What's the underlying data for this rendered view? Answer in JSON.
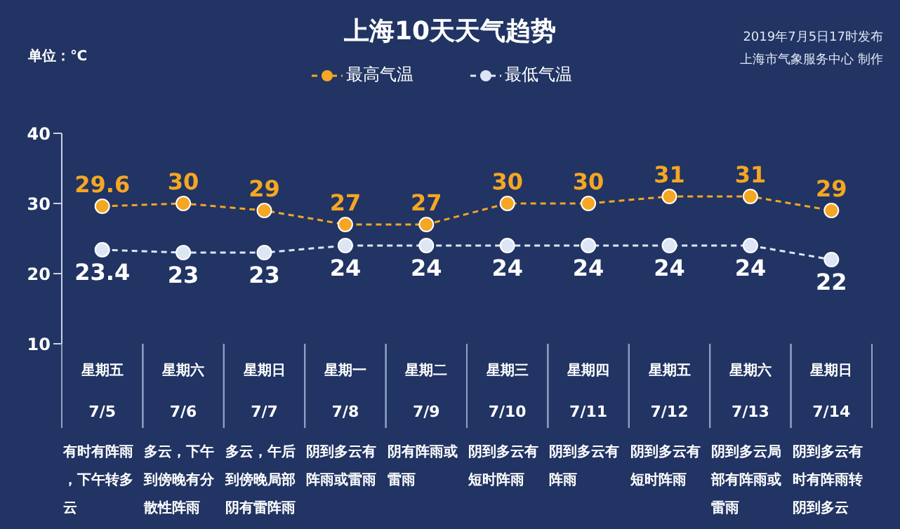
{
  "chart_data": {
    "type": "line",
    "title": "上海10天天气趋势",
    "ylabel": "单位：℃",
    "annotations": [
      "2019年7月5日17时发布",
      "上海市气象服务中心 制作"
    ],
    "categories": [
      "星期五\n7/5\n有时有阵雨，下午转多云",
      "星期六\n7/6\n多云，下午到傍晚有分散性阵雨",
      "星期日\n7/7\n多云，午后到傍晚局部阴有雷阵雨",
      "星期一\n7/8\n阴到多云有阵雨或雷雨",
      "星期二\n7/9\n阴有阵雨或雷雨",
      "星期三\n7/10\n阴到多云有短时阵雨",
      "星期四\n7/11\n阴到多云有阵雨",
      "星期五\n7/12\n阴到多云有短时阵雨",
      "星期六\n7/13\n阴到多云局部有阵雨或雷雨",
      "星期日\n7/14\n阴到多云有时有阵雨转阴到多云"
    ],
    "series": [
      {
        "name": "最高气温",
        "color": "#f5a623",
        "values": [
          29.6,
          30,
          29,
          27,
          27,
          30,
          30,
          31,
          31,
          29
        ]
      },
      {
        "name": "最低气温",
        "color": "#dce6f5",
        "values": [
          23.4,
          23,
          23,
          24,
          24,
          24,
          24,
          24,
          24,
          22
        ]
      }
    ],
    "ylim": [
      10,
      40
    ],
    "yticks": [
      10,
      20,
      30,
      40
    ],
    "grid": false,
    "legend": "top",
    "marker": "circle",
    "line_style": "dashed",
    "data_labels": true
  }
}
